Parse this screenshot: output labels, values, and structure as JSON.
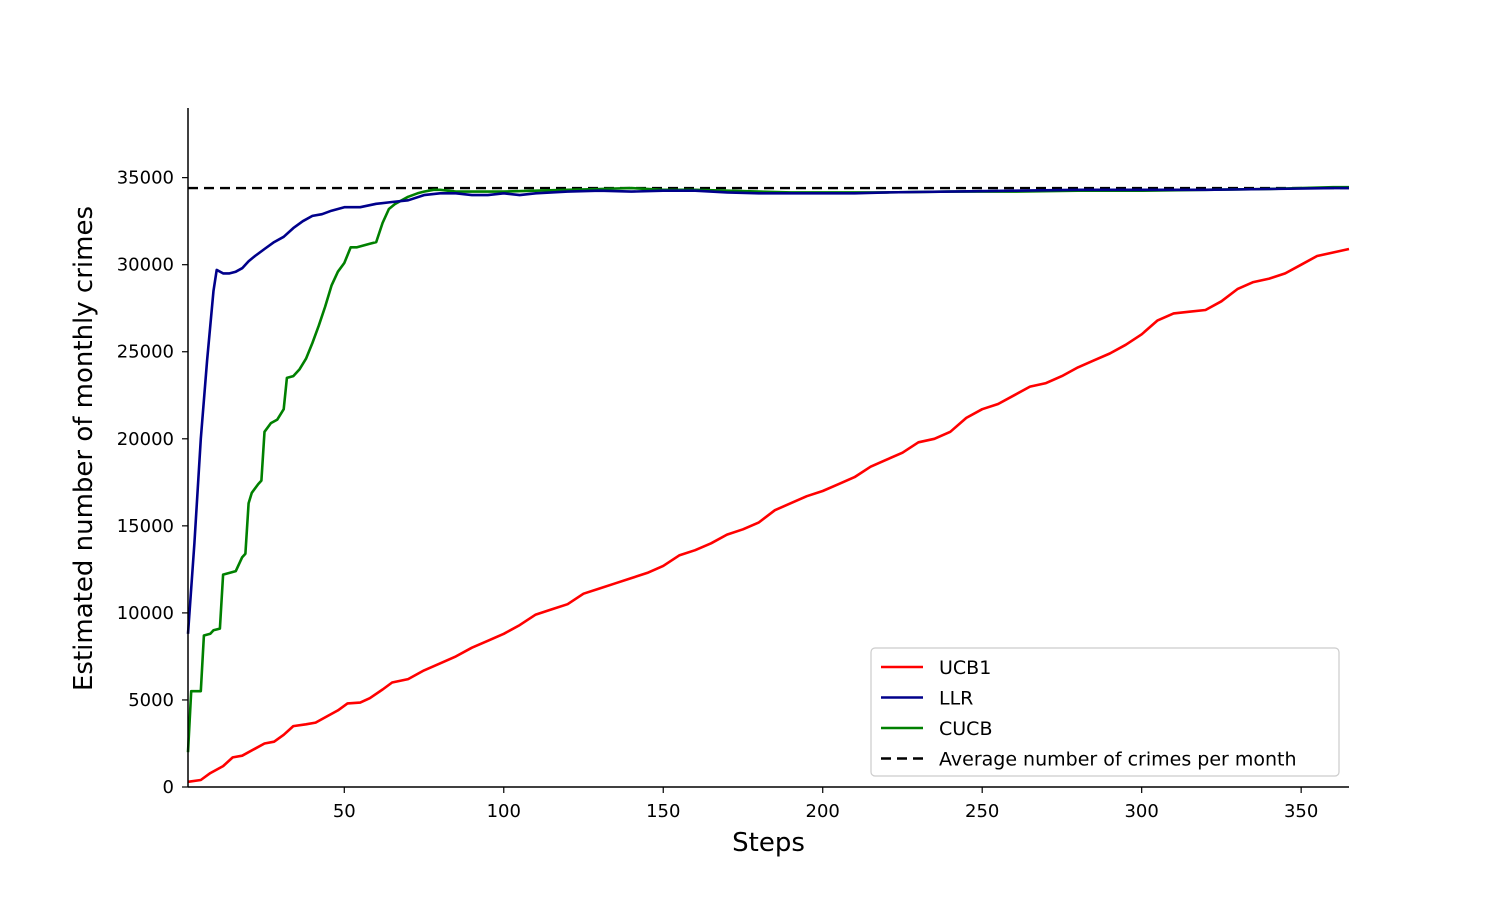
{
  "chart_data": {
    "type": "line",
    "title": "",
    "xlabel": "Steps",
    "ylabel": "Estimated number of monthly crimes",
    "xlim": [
      1,
      365
    ],
    "ylim": [
      0,
      39000
    ],
    "xticks": [
      50,
      100,
      150,
      200,
      250,
      300,
      350
    ],
    "yticks": [
      0,
      5000,
      10000,
      15000,
      20000,
      25000,
      30000,
      35000
    ],
    "grid": false,
    "legend_position": "bottom-right",
    "series": [
      {
        "name": "UCB1",
        "color": "#ff0000",
        "style": "solid",
        "points": [
          [
            1,
            300
          ],
          [
            5,
            400
          ],
          [
            8,
            800
          ],
          [
            12,
            1200
          ],
          [
            15,
            1700
          ],
          [
            18,
            1800
          ],
          [
            22,
            2200
          ],
          [
            25,
            2500
          ],
          [
            28,
            2600
          ],
          [
            31,
            3000
          ],
          [
            34,
            3500
          ],
          [
            38,
            3600
          ],
          [
            41,
            3700
          ],
          [
            45,
            4100
          ],
          [
            48,
            4400
          ],
          [
            51,
            4800
          ],
          [
            55,
            4850
          ],
          [
            58,
            5100
          ],
          [
            62,
            5600
          ],
          [
            65,
            6000
          ],
          [
            70,
            6200
          ],
          [
            75,
            6700
          ],
          [
            80,
            7100
          ],
          [
            85,
            7500
          ],
          [
            90,
            8000
          ],
          [
            95,
            8400
          ],
          [
            100,
            8800
          ],
          [
            105,
            9300
          ],
          [
            110,
            9900
          ],
          [
            115,
            10200
          ],
          [
            120,
            10500
          ],
          [
            125,
            11100
          ],
          [
            130,
            11400
          ],
          [
            135,
            11700
          ],
          [
            140,
            12000
          ],
          [
            145,
            12300
          ],
          [
            150,
            12700
          ],
          [
            155,
            13300
          ],
          [
            160,
            13600
          ],
          [
            165,
            14000
          ],
          [
            170,
            14500
          ],
          [
            175,
            14800
          ],
          [
            180,
            15200
          ],
          [
            185,
            15900
          ],
          [
            190,
            16300
          ],
          [
            195,
            16700
          ],
          [
            200,
            17000
          ],
          [
            205,
            17400
          ],
          [
            210,
            17800
          ],
          [
            215,
            18400
          ],
          [
            220,
            18800
          ],
          [
            225,
            19200
          ],
          [
            230,
            19800
          ],
          [
            235,
            20000
          ],
          [
            240,
            20400
          ],
          [
            245,
            21200
          ],
          [
            250,
            21700
          ],
          [
            255,
            22000
          ],
          [
            260,
            22500
          ],
          [
            265,
            23000
          ],
          [
            270,
            23200
          ],
          [
            275,
            23600
          ],
          [
            280,
            24100
          ],
          [
            285,
            24500
          ],
          [
            290,
            24900
          ],
          [
            295,
            25400
          ],
          [
            300,
            26000
          ],
          [
            305,
            26800
          ],
          [
            310,
            27200
          ],
          [
            315,
            27300
          ],
          [
            320,
            27400
          ],
          [
            325,
            27900
          ],
          [
            330,
            28600
          ],
          [
            335,
            29000
          ],
          [
            340,
            29200
          ],
          [
            345,
            29500
          ],
          [
            350,
            30000
          ],
          [
            355,
            30500
          ],
          [
            360,
            30700
          ],
          [
            365,
            30900
          ]
        ]
      },
      {
        "name": "LLR",
        "color": "#00008b",
        "style": "solid",
        "points": [
          [
            1,
            8800
          ],
          [
            3,
            14000
          ],
          [
            5,
            20000
          ],
          [
            7,
            24500
          ],
          [
            9,
            28500
          ],
          [
            10,
            29700
          ],
          [
            12,
            29500
          ],
          [
            14,
            29500
          ],
          [
            16,
            29600
          ],
          [
            18,
            29800
          ],
          [
            20,
            30200
          ],
          [
            22,
            30500
          ],
          [
            25,
            30900
          ],
          [
            28,
            31300
          ],
          [
            31,
            31600
          ],
          [
            34,
            32100
          ],
          [
            37,
            32500
          ],
          [
            40,
            32800
          ],
          [
            43,
            32900
          ],
          [
            46,
            33100
          ],
          [
            50,
            33300
          ],
          [
            55,
            33300
          ],
          [
            60,
            33500
          ],
          [
            65,
            33600
          ],
          [
            70,
            33700
          ],
          [
            75,
            34000
          ],
          [
            80,
            34100
          ],
          [
            85,
            34100
          ],
          [
            90,
            34000
          ],
          [
            95,
            34000
          ],
          [
            100,
            34100
          ],
          [
            105,
            34000
          ],
          [
            110,
            34100
          ],
          [
            120,
            34200
          ],
          [
            130,
            34250
          ],
          [
            140,
            34200
          ],
          [
            150,
            34250
          ],
          [
            160,
            34250
          ],
          [
            170,
            34150
          ],
          [
            180,
            34100
          ],
          [
            190,
            34100
          ],
          [
            200,
            34100
          ],
          [
            210,
            34100
          ],
          [
            220,
            34150
          ],
          [
            240,
            34200
          ],
          [
            260,
            34250
          ],
          [
            280,
            34300
          ],
          [
            300,
            34300
          ],
          [
            320,
            34300
          ],
          [
            340,
            34350
          ],
          [
            360,
            34400
          ],
          [
            365,
            34400
          ]
        ]
      },
      {
        "name": "CUCB",
        "color": "#008000",
        "style": "solid",
        "points": [
          [
            1,
            2000
          ],
          [
            2,
            5500
          ],
          [
            5,
            5500
          ],
          [
            6,
            8700
          ],
          [
            8,
            8800
          ],
          [
            9,
            9000
          ],
          [
            11,
            9100
          ],
          [
            12,
            12200
          ],
          [
            14,
            12300
          ],
          [
            16,
            12400
          ],
          [
            18,
            13200
          ],
          [
            19,
            13400
          ],
          [
            20,
            16300
          ],
          [
            21,
            16900
          ],
          [
            23,
            17400
          ],
          [
            24,
            17600
          ],
          [
            25,
            20400
          ],
          [
            27,
            20900
          ],
          [
            29,
            21100
          ],
          [
            31,
            21700
          ],
          [
            32,
            23500
          ],
          [
            34,
            23600
          ],
          [
            36,
            24000
          ],
          [
            38,
            24600
          ],
          [
            40,
            25500
          ],
          [
            42,
            26500
          ],
          [
            44,
            27600
          ],
          [
            46,
            28800
          ],
          [
            48,
            29600
          ],
          [
            50,
            30100
          ],
          [
            52,
            31000
          ],
          [
            54,
            31000
          ],
          [
            56,
            31100
          ],
          [
            58,
            31200
          ],
          [
            60,
            31300
          ],
          [
            62,
            32400
          ],
          [
            64,
            33200
          ],
          [
            66,
            33500
          ],
          [
            68,
            33700
          ],
          [
            70,
            33900
          ],
          [
            73,
            34100
          ],
          [
            75,
            34200
          ],
          [
            78,
            34300
          ],
          [
            80,
            34300
          ],
          [
            85,
            34200
          ],
          [
            90,
            34200
          ],
          [
            95,
            34200
          ],
          [
            100,
            34200
          ],
          [
            110,
            34250
          ],
          [
            120,
            34300
          ],
          [
            130,
            34350
          ],
          [
            140,
            34400
          ],
          [
            150,
            34300
          ],
          [
            160,
            34300
          ],
          [
            170,
            34250
          ],
          [
            180,
            34200
          ],
          [
            190,
            34150
          ],
          [
            200,
            34150
          ],
          [
            220,
            34150
          ],
          [
            240,
            34200
          ],
          [
            260,
            34200
          ],
          [
            280,
            34250
          ],
          [
            300,
            34250
          ],
          [
            320,
            34300
          ],
          [
            340,
            34350
          ],
          [
            360,
            34450
          ],
          [
            365,
            34450
          ]
        ]
      },
      {
        "name": "Average number of crimes per month",
        "color": "#000000",
        "style": "dashed",
        "points": [
          [
            1,
            34400
          ],
          [
            365,
            34400
          ]
        ]
      }
    ]
  }
}
